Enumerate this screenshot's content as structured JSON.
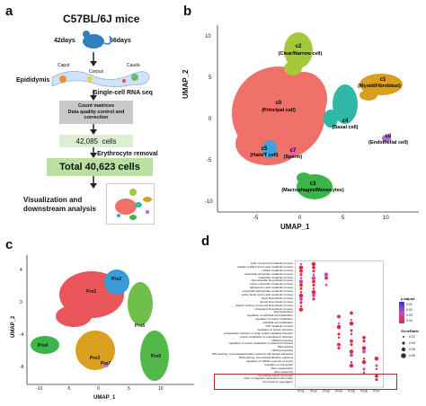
{
  "panels": {
    "a": "a",
    "b": "b",
    "c": "c",
    "d": "d"
  },
  "flow": {
    "title": "C57BL/6J mice",
    "age_left": "42days",
    "age_right": "56days",
    "caput": "Caput",
    "corpus": "Corpus",
    "cauda": "Cauda",
    "epididymis": "Epididymis",
    "scrnaseq": "Single-cell RNA seq",
    "matrix_line1": "Count matrices",
    "matrix_line2": "Data quality control and",
    "matrix_line3": "correction",
    "cells_count": "42,085",
    "cells_word": "cells",
    "erythrocyte": "Erythrocyte removal",
    "total": "Total 40,623  cells",
    "viz_line1": "Visualization and",
    "viz_line2": "downstream analysis",
    "colors": {
      "mouse": "#2f7fc1",
      "matrix_box": "#c9c9c9",
      "cells_box": "#dcefd0",
      "total_box": "#b9dfa2"
    }
  },
  "umap_b": {
    "xlabel": "UMAP_1",
    "ylabel": "UMAP_2",
    "xticks": [
      "-5",
      "0",
      "5",
      "10"
    ],
    "yticks": [
      "10",
      "5",
      "0",
      "-5",
      "-10"
    ],
    "clusters": [
      {
        "name": "c0\n(Principal cell)",
        "label1": "c0",
        "label2": "(Principal cell)",
        "color": "#f0706a",
        "cx": -1,
        "cy": 1
      },
      {
        "name": "c2",
        "label1": "c2",
        "label2": "(Clear/Narrow cell)",
        "color": "#a5c93b",
        "cx": 2.5,
        "cy": 9.5
      },
      {
        "name": "c1",
        "label1": "c1",
        "label2": "(Myoid/Fibroblast)",
        "color": "#d9a020",
        "cx": 10.5,
        "cy": 5
      },
      {
        "name": "c4",
        "label1": "c4",
        "label2": "(Basal cell)",
        "color": "#2fb8a6",
        "cx": 5.5,
        "cy": 2
      },
      {
        "name": "c3",
        "label1": "c3",
        "label2": "(Macrophages/Monocytes)",
        "color": "#39b54a",
        "cx": 3,
        "cy": -8
      },
      {
        "name": "c5",
        "label1": "c5",
        "label2": "(Halo/T cell)",
        "color": "#3aa3d9",
        "cx": -3,
        "cy": -2.5
      },
      {
        "name": "c6",
        "label1": "c6",
        "label2": "(Endothelial cell)",
        "color": "#b06ad9",
        "cx": 11,
        "cy": -2
      },
      {
        "name": "c7",
        "label1": "c7",
        "label2": "(Sperm)",
        "color": "#e55bb5",
        "cx": 0,
        "cy": -2.8
      }
    ]
  },
  "umap_c": {
    "xlabel": "UMAP_1",
    "ylabel": "UMAP_2",
    "xticks": [
      "-10",
      "-5",
      "0",
      "5",
      "10"
    ],
    "yticks": [
      "4",
      "0",
      "-4",
      "-8"
    ],
    "labels": [
      "Pro1",
      "Pro2",
      "Pro3",
      "Pro4",
      "Pro5",
      "Pro6",
      "Pro7"
    ]
  },
  "dotplot_d": {
    "rows": [
      "sulfur compound metabolic process",
      "cellular modified amino acid metabolic process",
      "cellular metabolic process",
      "nucleoside phosphate metabolic process",
      "nucleotide metabolic process",
      "ribonucleotide biosynthetic process",
      "purine nucleotide metabolic process",
      "alpha-amino acid metabolic process",
      "nucleoside diphosphate metabolic process",
      "serine family amino acid metabolic process",
      "sterol biosynthetic process",
      "steroid biosynthetic process",
      "organic hydroxy compound biosynthetic process",
      "cholesterol biosynthetic process",
      "lipid localization",
      "regulation of epithelial cell proliferation",
      "regulation of protein localization",
      "epithelial cell proliferation",
      "ATP metabolic process",
      "regulation of protein secretion",
      "endoplasmic reticulum to Golgi vesicle-mediated transport",
      "protein localization to endoplasmic reticulum",
      "mRNA processing",
      "regulation of protein localization to plasma membrane",
      "RNA splicing",
      "mRNA processing",
      "RNA splicing, via transesterification reactions with bulged adenosine as nucleophile",
      "RNA splicing, via transesterification reactions",
      "regulation of cellular response to stress",
      "regulation of cell growth",
      "cilium organization",
      "cilium assembly",
      "microtubule-based movement",
      "cilium or flagellum-dependent cell motility",
      "chromosome segregation"
    ],
    "columns": [
      "Pro1",
      "Pro2",
      "Pro3",
      "Pro4",
      "Pro5",
      "Pro6",
      "Pro7"
    ],
    "legend_color_title": "p.adjust",
    "legend_size_title": "GeneRatio",
    "legend_color_ticks": [
      "0.01",
      "0.02",
      "0.03",
      "0.04"
    ],
    "legend_size_ticks": [
      "0.02",
      "0.04",
      "0.06",
      "0.08"
    ],
    "highlight_color": "#b0282c"
  }
}
